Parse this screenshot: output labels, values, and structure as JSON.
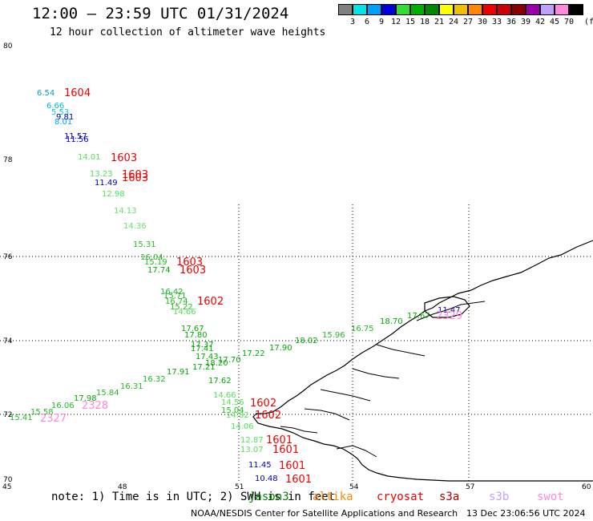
{
  "title": "12:00 – 23:59 UTC 01/31/2024",
  "subtitle": "12 hour collection of altimeter wave heights",
  "legend": {
    "unit": "(ft)",
    "bins": [
      {
        "color": "#808080",
        "label": "3"
      },
      {
        "color": "#00e5e5",
        "label": "6"
      },
      {
        "color": "#00a0ff",
        "label": "9"
      },
      {
        "color": "#0000e0",
        "label": "12"
      },
      {
        "color": "#33dd33",
        "label": "15"
      },
      {
        "color": "#00b000",
        "label": "18"
      },
      {
        "color": "#008800",
        "label": "21"
      },
      {
        "color": "#ffff00",
        "label": "24"
      },
      {
        "color": "#f0c000",
        "label": "27"
      },
      {
        "color": "#ff8800",
        "label": "30"
      },
      {
        "color": "#ee0000",
        "label": "33"
      },
      {
        "color": "#cc0000",
        "label": "36"
      },
      {
        "color": "#880000",
        "label": "39"
      },
      {
        "color": "#9900aa",
        "label": "42"
      },
      {
        "color": "#c0a0ff",
        "label": "45"
      },
      {
        "color": "#ff88dd",
        "label": "70"
      },
      {
        "color": "#000000",
        "label": ""
      }
    ]
  },
  "axes": {
    "lat_ticks": [
      "80",
      "78",
      "76",
      "74",
      "72",
      "70"
    ],
    "lon_ticks": [
      "45",
      "48",
      "51",
      "54",
      "57",
      "60"
    ]
  },
  "points": [
    {
      "t": "6.54",
      "c": "#00a0c0"
    },
    {
      "t": "6.66",
      "c": "#00c0d0"
    },
    {
      "t": "5.53",
      "c": "#00c8e0"
    },
    {
      "t": "9.81",
      "c": "#0000a0"
    },
    {
      "t": "8.01",
      "c": "#00a0ff"
    },
    {
      "t": "11.57",
      "c": "#0000c0"
    },
    {
      "t": "11.56",
      "c": "#0000c0"
    },
    {
      "t": "14.01",
      "c": "#55e055"
    },
    {
      "t": "13.23",
      "c": "#55e055"
    },
    {
      "t": "11.49",
      "c": "#0000c0"
    },
    {
      "t": "12.98",
      "c": "#55e055"
    },
    {
      "t": "14.13",
      "c": "#66e066"
    },
    {
      "t": "14.36",
      "c": "#66e066"
    },
    {
      "t": "15.31",
      "c": "#22bb22"
    },
    {
      "t": "16.04",
      "c": "#22bb22"
    },
    {
      "t": "15.19",
      "c": "#22bb22"
    },
    {
      "t": "17.74",
      "c": "#00aa00"
    },
    {
      "t": "16.42",
      "c": "#22bb22"
    },
    {
      "t": "15.71",
      "c": "#22bb22"
    },
    {
      "t": "16.74",
      "c": "#22bb22"
    },
    {
      "t": "15.22",
      "c": "#22bb22"
    },
    {
      "t": "14.66",
      "c": "#55e055"
    },
    {
      "t": "17.67",
      "c": "#00aa00"
    },
    {
      "t": "17.80",
      "c": "#00aa00"
    },
    {
      "t": "17.37",
      "c": "#00aa00"
    },
    {
      "t": "17.41",
      "c": "#00aa00"
    },
    {
      "t": "17.43",
      "c": "#00aa00"
    },
    {
      "t": "18.20",
      "c": "#00aa00"
    },
    {
      "t": "17.70",
      "c": "#00aa00"
    },
    {
      "t": "17.21",
      "c": "#00aa00"
    },
    {
      "t": "17.91",
      "c": "#00aa00"
    },
    {
      "t": "17.62",
      "c": "#00aa00"
    },
    {
      "t": "14.66",
      "c": "#55e055"
    },
    {
      "t": "14.56",
      "c": "#55e055"
    },
    {
      "t": "15.04",
      "c": "#22bb22"
    },
    {
      "t": "14.82",
      "c": "#55e055"
    },
    {
      "t": "14.06",
      "c": "#55e055"
    },
    {
      "t": "12.87",
      "c": "#55e055"
    },
    {
      "t": "13.07",
      "c": "#55e055"
    },
    {
      "t": "11.45",
      "c": "#0000c0"
    },
    {
      "t": "10.48",
      "c": "#0000c0"
    },
    {
      "t": "17.22",
      "c": "#00aa00"
    },
    {
      "t": "17.90",
      "c": "#00aa00"
    },
    {
      "t": "18.02",
      "c": "#00aa00"
    },
    {
      "t": "15.96",
      "c": "#22bb22"
    },
    {
      "t": "16.75",
      "c": "#22bb22"
    },
    {
      "t": "18.70",
      "c": "#00aa00"
    },
    {
      "t": "17.67",
      "c": "#00aa00"
    },
    {
      "t": "11.47",
      "c": "#0000c0"
    },
    {
      "t": "16.32",
      "c": "#22bb22"
    },
    {
      "t": "16.31",
      "c": "#22bb22"
    },
    {
      "t": "15.84",
      "c": "#22bb22"
    },
    {
      "t": "17.98",
      "c": "#00aa00"
    },
    {
      "t": "16.06",
      "c": "#22bb22"
    },
    {
      "t": "15.58",
      "c": "#22bb22"
    },
    {
      "t": "15.41",
      "c": "#22bb22"
    }
  ],
  "passes": [
    {
      "t": "1604",
      "c": "#ee0000"
    },
    {
      "t": "1603",
      "c": "#ee0000"
    },
    {
      "t": "1603",
      "c": "#ee0000"
    },
    {
      "t": "1603",
      "c": "#ee0000"
    },
    {
      "t": "1603",
      "c": "#ee0000"
    },
    {
      "t": "1603",
      "c": "#ee0000"
    },
    {
      "t": "1602",
      "c": "#ee0000"
    },
    {
      "t": "1602",
      "c": "#ee0000"
    },
    {
      "t": "1602",
      "c": "#ee0000"
    },
    {
      "t": "1601",
      "c": "#ee0000"
    },
    {
      "t": "1601",
      "c": "#ee0000"
    },
    {
      "t": "1601",
      "c": "#ee0000"
    },
    {
      "t": "1601",
      "c": "#ee0000"
    },
    {
      "t": "2328",
      "c": "#ff88dd"
    },
    {
      "t": "2327",
      "c": "#ff88dd"
    },
    {
      "t": "2329",
      "c": "#ff88dd"
    }
  ],
  "note": "note: 1) Time is in UTC; 2) SWH is in feet",
  "satellites": [
    {
      "name": "jason3",
      "color": "#008800"
    },
    {
      "name": "altika",
      "color": "#ff8800"
    },
    {
      "name": "cryosat",
      "color": "#ee0000"
    },
    {
      "name": "s3a",
      "color": "#aa0000"
    },
    {
      "name": "s3b",
      "color": "#c0a0ff"
    },
    {
      "name": "swot",
      "color": "#ff88dd"
    }
  ],
  "footer": {
    "org": "NOAA/NESDIS Center for Satellite Applications and Research",
    "date": "13 Dec 23:06:56 UTC 2024"
  }
}
